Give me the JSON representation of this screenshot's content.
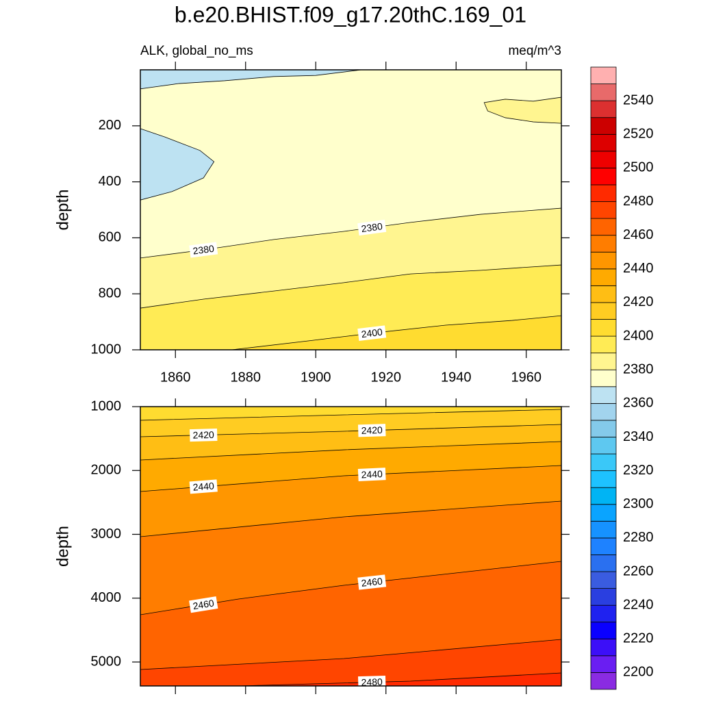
{
  "chart_data": {
    "type": "contour",
    "title": "b.e20.BHIST.f09_g17.20thC.169_01",
    "left_string": "ALK, global_no_ms",
    "right_string": "meq/m^3",
    "xlim": [
      1850,
      1970
    ],
    "xticks": [
      1860,
      1880,
      1900,
      1920,
      1940,
      1960
    ],
    "levels": [
      2200,
      2210,
      2220,
      2230,
      2240,
      2250,
      2260,
      2270,
      2280,
      2290,
      2300,
      2310,
      2320,
      2330,
      2340,
      2350,
      2360,
      2370,
      2380,
      2390,
      2400,
      2410,
      2420,
      2430,
      2440,
      2450,
      2460,
      2470,
      2480,
      2490,
      2500,
      2510,
      2520,
      2530,
      2540,
      2550
    ],
    "colors": [
      "#8a2be2",
      "#6a1ef2",
      "#3c0ff8",
      "#0a00ff",
      "#1f22f0",
      "#2a3fe0",
      "#3a5ce0",
      "#2a70f0",
      "#1e82ff",
      "#1692ff",
      "#0aa4ff",
      "#00b4f4",
      "#1ec2ff",
      "#3ac8f8",
      "#5ec8f0",
      "#84caea",
      "#a2d4ee",
      "#bde2f2",
      "#ffffcc",
      "#fff590",
      "#ffeb55",
      "#ffdc30",
      "#ffcc22",
      "#ffbe14",
      "#ffaa00",
      "#ff9600",
      "#ff7d00",
      "#ff6400",
      "#ff4500",
      "#ff2a00",
      "#ff0000",
      "#ee0000",
      "#dd0000",
      "#cc0000",
      "#dc3030",
      "#e86a6a",
      "#ffb0b0"
    ],
    "colorbar_ticks": [
      2200,
      2220,
      2240,
      2260,
      2280,
      2300,
      2320,
      2340,
      2360,
      2380,
      2400,
      2420,
      2440,
      2460,
      2480,
      2500,
      2520,
      2540
    ],
    "panels": [
      {
        "ylabel": "depth",
        "ylim": [
          0,
          1000
        ],
        "yticks": [
          200,
          400,
          600,
          800,
          1000
        ],
        "contours": [
          {
            "level": 2370,
            "x": [
              1850,
              1861,
              1874,
              1888,
              1900,
              1913
            ],
            "y": [
              68,
              49,
              39,
              24,
              20,
              0
            ]
          },
          {
            "level": 2370,
            "x": [
              1850,
              1859,
              1868,
              1871,
              1867,
              1857,
              1850
            ],
            "y": [
              465,
              435,
              386,
              328,
              288,
              240,
              210
            ]
          },
          {
            "level": 2380,
            "x": [
              1970,
              1962,
              1954,
              1949,
              1948,
              1954,
              1962,
              1970
            ],
            "y": [
              191,
              186,
              171,
              147,
              117,
              105,
              112,
              98
            ]
          },
          {
            "level": 2380,
            "x": [
              1850,
              1868,
              1888,
              1908,
              1927,
              1947,
              1970
            ],
            "y": [
              672,
              643,
              606,
              577,
              545,
              516,
              494
            ]
          },
          {
            "level": 2390,
            "x": [
              1850,
              1868,
              1888,
              1908,
              1927,
              1947,
              1970
            ],
            "y": [
              851,
              819,
              790,
              760,
              729,
              716,
              697
            ]
          },
          {
            "level": 2400,
            "x": [
              1876,
              1898,
              1917,
              1937,
              1956,
              1970
            ],
            "y": [
              1000,
              968,
              939,
              912,
              895,
              878
            ]
          }
        ]
      },
      {
        "ylabel": "depth",
        "ylim": [
          1000,
          5375
        ],
        "yticks": [
          1000,
          2000,
          3000,
          4000,
          5000
        ],
        "contours": [
          {
            "level": 2410,
            "x": [
              1850,
              1908,
              1970
            ],
            "y": [
              1214,
              1129,
              1043
            ]
          },
          {
            "level": 2420,
            "x": [
              1850,
              1908,
              1970
            ],
            "y": [
              1472,
              1386,
              1279
            ]
          },
          {
            "level": 2430,
            "x": [
              1850,
              1908,
              1970
            ],
            "y": [
              1836,
              1676,
              1547
            ]
          },
          {
            "level": 2440,
            "x": [
              1850,
              1908,
              1970
            ],
            "y": [
              2330,
              2083,
              1922
            ]
          },
          {
            "level": 2450,
            "x": [
              1850,
              1908,
              1970
            ],
            "y": [
              3037,
              2726,
              2480
            ]
          },
          {
            "level": 2460,
            "x": [
              1850,
              1878,
              1908,
              1970
            ],
            "y": [
              4260,
              4013,
              3799,
              3423
            ]
          },
          {
            "level": 2470,
            "x": [
              1850,
              1908,
              1970
            ],
            "y": [
              5118,
              4946,
              4646
            ]
          },
          {
            "level": 2480,
            "x": [
              1878,
              1927,
              1970
            ],
            "y": [
              5375,
              5300,
              5171
            ]
          }
        ]
      }
    ]
  }
}
